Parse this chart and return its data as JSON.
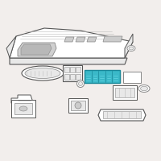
{
  "background_color": "#f2eeec",
  "line_color": "#888888",
  "dark_line": "#555555",
  "light_line": "#bbbbbb",
  "highlight_color": "#3ab8c8",
  "highlight_dark": "#1a8899",
  "highlight_light": "#5dd0de",
  "white": "#ffffff",
  "light_gray": "#e8e8e8",
  "mid_gray": "#cccccc",
  "fig_width": 2.0,
  "fig_height": 2.0,
  "dpi": 100
}
